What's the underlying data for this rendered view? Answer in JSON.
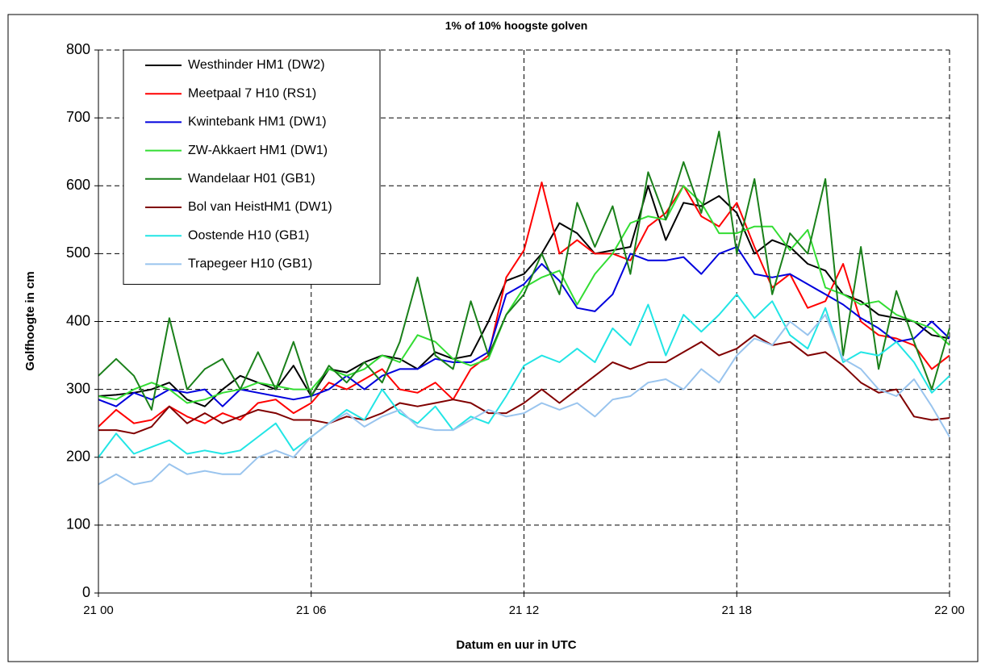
{
  "chart_data": {
    "type": "line",
    "title": "1% of 10% hoogste golven",
    "xlabel": "Datum en uur in UTC",
    "ylabel": "Golfhoogte in cm",
    "x": [
      0,
      0.5,
      1,
      1.5,
      2,
      2.5,
      3,
      3.5,
      4,
      4.5,
      5,
      5.5,
      6,
      6.5,
      7,
      7.5,
      8,
      8.5,
      9,
      9.5,
      10,
      10.5,
      11,
      11.5,
      12,
      12.5,
      13,
      13.5,
      14,
      14.5,
      15,
      15.5,
      16,
      16.5,
      17,
      17.5,
      18,
      18.5,
      19,
      19.5,
      20,
      20.5,
      21,
      21.5,
      22,
      22.5,
      23,
      23.5,
      24
    ],
    "xlim": [
      0,
      24
    ],
    "xticks": [
      {
        "value": 0,
        "label": "21 00"
      },
      {
        "value": 6,
        "label": "21 06"
      },
      {
        "value": 12,
        "label": "21 12"
      },
      {
        "value": 18,
        "label": "21 18"
      },
      {
        "value": 24,
        "label": "22 00"
      }
    ],
    "ylim": [
      0,
      800
    ],
    "yticks": [
      0,
      100,
      200,
      300,
      400,
      500,
      600,
      700,
      800
    ],
    "grid": true,
    "legend": "upper left",
    "series": [
      {
        "name": "Westhinder HM1 (DW2)",
        "color": "#000000",
        "values": [
          290,
          292,
          295,
          300,
          310,
          285,
          275,
          300,
          320,
          310,
          300,
          335,
          290,
          330,
          325,
          340,
          350,
          345,
          330,
          355,
          345,
          350,
          400,
          460,
          470,
          500,
          545,
          530,
          500,
          505,
          510,
          600,
          520,
          575,
          570,
          585,
          560,
          500,
          520,
          510,
          485,
          475,
          440,
          430,
          410,
          405,
          400,
          380,
          375
        ]
      },
      {
        "name": "Meetpaal 7 H10 (RS1)",
        "color": "#ff0000",
        "values": [
          245,
          270,
          250,
          255,
          275,
          260,
          250,
          265,
          255,
          280,
          285,
          265,
          280,
          310,
          300,
          315,
          330,
          300,
          295,
          310,
          285,
          330,
          350,
          465,
          505,
          605,
          500,
          520,
          500,
          500,
          490,
          540,
          560,
          600,
          555,
          540,
          575,
          510,
          450,
          470,
          420,
          430,
          485,
          400,
          380,
          375,
          365,
          330,
          350
        ]
      },
      {
        "name": "Kwintebank HM1 (DW1)",
        "color": "#0000dd",
        "values": [
          285,
          275,
          295,
          285,
          300,
          295,
          300,
          275,
          300,
          295,
          290,
          285,
          290,
          300,
          320,
          300,
          320,
          330,
          330,
          345,
          340,
          340,
          355,
          440,
          455,
          485,
          460,
          420,
          415,
          440,
          500,
          490,
          490,
          495,
          470,
          500,
          510,
          470,
          465,
          470,
          455,
          440,
          425,
          405,
          390,
          370,
          375,
          400,
          375
        ]
      },
      {
        "name": "ZW-Akkaert HM1 (DW1)",
        "color": "#33dd33",
        "values": [
          290,
          285,
          300,
          310,
          300,
          280,
          285,
          295,
          300,
          310,
          305,
          300,
          300,
          330,
          320,
          330,
          350,
          340,
          380,
          370,
          345,
          335,
          345,
          410,
          450,
          465,
          475,
          425,
          470,
          500,
          545,
          555,
          550,
          600,
          575,
          530,
          530,
          540,
          540,
          505,
          535,
          450,
          440,
          425,
          430,
          410,
          400,
          390,
          365
        ]
      },
      {
        "name": "Wandelaar H01 (GB1)",
        "color": "#1a801a",
        "values": [
          320,
          345,
          320,
          270,
          405,
          300,
          330,
          345,
          300,
          355,
          300,
          370,
          290,
          335,
          310,
          340,
          310,
          370,
          465,
          350,
          330,
          430,
          350,
          410,
          440,
          500,
          440,
          575,
          510,
          570,
          470,
          620,
          550,
          635,
          560,
          680,
          500,
          610,
          440,
          530,
          500,
          610,
          350,
          510,
          330,
          445,
          370,
          300,
          390
        ]
      },
      {
        "name": "Bol van HeistHM1 (DW1)",
        "color": "#800000",
        "values": [
          240,
          240,
          235,
          245,
          275,
          250,
          265,
          250,
          260,
          270,
          265,
          255,
          255,
          250,
          260,
          255,
          265,
          280,
          275,
          280,
          285,
          280,
          265,
          265,
          280,
          300,
          280,
          300,
          320,
          340,
          330,
          340,
          340,
          355,
          370,
          350,
          360,
          380,
          365,
          370,
          350,
          355,
          335,
          310,
          295,
          300,
          260,
          255,
          258
        ]
      },
      {
        "name": "Oostende H10 (GB1)",
        "color": "#22e5e5",
        "values": [
          200,
          235,
          205,
          215,
          225,
          205,
          210,
          205,
          210,
          230,
          250,
          210,
          230,
          250,
          270,
          255,
          300,
          265,
          250,
          275,
          240,
          260,
          250,
          290,
          335,
          350,
          340,
          360,
          340,
          390,
          365,
          425,
          350,
          410,
          385,
          410,
          440,
          405,
          430,
          380,
          360,
          420,
          340,
          355,
          350,
          370,
          340,
          295,
          320
        ]
      },
      {
        "name": "Trapegeer H10 (GB1)",
        "color": "#99c4ee",
        "values": [
          160,
          175,
          160,
          165,
          190,
          175,
          180,
          175,
          175,
          200,
          210,
          200,
          230,
          250,
          265,
          245,
          260,
          270,
          245,
          240,
          240,
          255,
          270,
          260,
          265,
          280,
          270,
          280,
          260,
          285,
          290,
          310,
          315,
          300,
          330,
          310,
          350,
          375,
          365,
          400,
          380,
          410,
          345,
          330,
          300,
          290,
          315,
          275,
          230
        ]
      }
    ]
  }
}
